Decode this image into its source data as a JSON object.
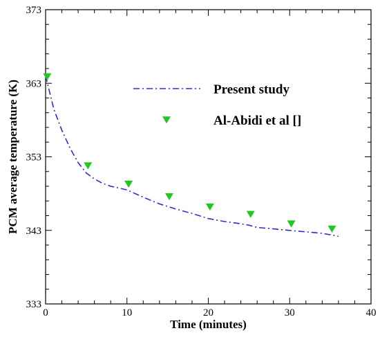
{
  "chart_data": {
    "type": "line",
    "xlabel": "Time (minutes)",
    "ylabel": "PCM average temperature (K)",
    "xlim": [
      0,
      40
    ],
    "ylim": [
      333,
      373
    ],
    "xticks": [
      "0",
      "10",
      "20",
      "30",
      "40"
    ],
    "yticks": [
      "333",
      "343",
      "353",
      "363",
      "373"
    ],
    "grid": false,
    "legend_position": "top-right",
    "series": [
      {
        "name": "Present study",
        "kind": "line",
        "style": "dash-dot",
        "color": "#2b2bd6",
        "x": [
          0,
          1,
          2,
          3,
          4,
          5,
          6,
          7,
          8,
          10,
          12,
          14,
          16,
          18,
          20,
          22,
          24,
          25,
          26,
          28,
          30,
          32,
          34,
          36
        ],
        "y": [
          364.0,
          359.5,
          356.6,
          354.2,
          352.2,
          350.8,
          350.0,
          349.4,
          349.0,
          348.5,
          347.5,
          346.6,
          345.9,
          345.3,
          344.6,
          344.2,
          343.9,
          343.7,
          343.4,
          343.2,
          343.0,
          342.8,
          342.6,
          342.2
        ]
      },
      {
        "name": "Al-Abidi et al []",
        "kind": "scatter",
        "marker": "triangle-down",
        "color": "#1fc91f",
        "x": [
          0.2,
          5.2,
          10.2,
          15.2,
          20.2,
          25.2,
          30.2,
          35.2
        ],
        "y": [
          363.9,
          351.8,
          349.3,
          347.6,
          346.2,
          345.2,
          343.9,
          343.2
        ]
      }
    ]
  }
}
